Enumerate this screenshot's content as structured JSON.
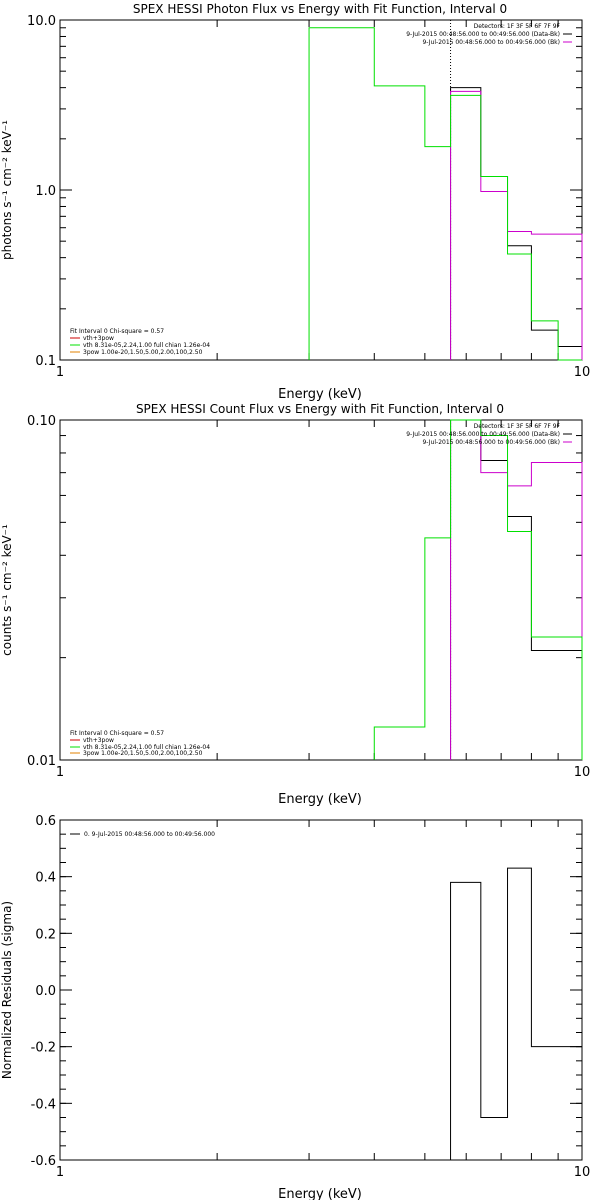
{
  "colors": {
    "black": "#000000",
    "green": "#00e000",
    "magenta": "#cc00cc",
    "red": "#cc0000",
    "orange": "#e08000"
  },
  "chart_data": [
    {
      "type": "line",
      "step": true,
      "title": "SPEX HESSI Photon Flux vs Energy with Fit Function, Interval 0",
      "xlabel": "Energy (keV)",
      "ylabel": "photons s⁻¹ cm⁻² keV⁻¹",
      "xscale": "log",
      "yscale": "log",
      "xlim": [
        1,
        10
      ],
      "ylim": [
        0.1,
        10
      ],
      "x_ticks": [
        "1",
        "10"
      ],
      "y_ticks": [
        "0.1",
        "1.0",
        "10.0"
      ],
      "vline_x": 5.6,
      "legend_topright": [
        "Detectors: 1F 3F 5F 6F 7F 9F",
        "9-Jul-2015 00:48:56.000 to 00:49:56.000 (Data-Bk)",
        "9-Jul-2015 00:48:56.000 to 00:49:56.000 (Bk)"
      ],
      "legend_bottomleft": [
        "Fit Interval 0   Chi-square = 0.57",
        "vth+3pow",
        "vth 8.31e-05,2.24,1.00  full chian 1.26e-04",
        "3pow 1.00e-20,1.50,5.00,2.00,100,2.50"
      ],
      "series": [
        {
          "name": "Data-Bk",
          "color": "black",
          "edges": [
            5.6,
            6.4,
            7.2,
            8.0,
            9.0,
            10.0
          ],
          "values": [
            4.0,
            1.2,
            0.47,
            0.15,
            0.12
          ]
        },
        {
          "name": "Bk",
          "color": "magenta",
          "edges": [
            5.6,
            6.4,
            7.2,
            8.0,
            9.0,
            10.0
          ],
          "values": [
            3.8,
            0.98,
            0.57,
            0.55,
            0.55
          ]
        },
        {
          "name": "vth+3pow",
          "color": "green",
          "edges": [
            3.0,
            4.0,
            5.0,
            5.6,
            6.4,
            7.2,
            8.0,
            9.0,
            10.0
          ],
          "values": [
            9.0,
            4.1,
            1.8,
            3.6,
            1.2,
            0.42,
            0.17,
            0.1
          ]
        }
      ]
    },
    {
      "type": "line",
      "step": true,
      "title": "SPEX HESSI Count Flux vs Energy with Fit Function, Interval 0",
      "xlabel": "Energy (keV)",
      "ylabel": "counts s⁻¹ cm⁻² keV⁻¹",
      "xscale": "log",
      "yscale": "log",
      "xlim": [
        1,
        10
      ],
      "ylim": [
        0.01,
        0.1
      ],
      "x_ticks": [
        "1",
        "10"
      ],
      "y_ticks": [
        "0.01",
        "0.10"
      ],
      "vline_x": 5.6,
      "legend_topright": [
        "Detectors: 1F 3F 5F 6F 7F 9F",
        "9-Jul-2015 00:48:56.000 to 00:49:56.000 (Data-Bk)",
        "9-Jul-2015 00:48:56.000 to 00:49:56.000 (Bk)"
      ],
      "legend_bottomleft": [
        "Fit Interval 0   Chi-square = 0.57",
        "vth+3pow",
        "vth 8.31e-05,2.24,1.00  full chian 1.26e-04",
        "3pow 1.00e-20,1.50,5.00,2.00,100,2.50"
      ],
      "series": [
        {
          "name": "Data-Bk",
          "color": "black",
          "edges": [
            5.6,
            6.4,
            7.2,
            8.0,
            9.0,
            10.0
          ],
          "values": [
            0.1,
            0.076,
            0.052,
            0.021,
            0.021
          ]
        },
        {
          "name": "Bk",
          "color": "magenta",
          "edges": [
            5.6,
            6.4,
            7.2,
            8.0,
            9.0,
            10.0
          ],
          "values": [
            0.1,
            0.07,
            0.064,
            0.075,
            0.075
          ]
        },
        {
          "name": "vth+3pow",
          "color": "green",
          "edges": [
            4.0,
            5.0,
            5.6,
            6.4,
            7.2,
            8.0,
            9.0,
            10.0
          ],
          "values": [
            0.0125,
            0.045,
            0.1,
            0.09,
            0.047,
            0.023,
            0.023
          ]
        }
      ]
    },
    {
      "type": "line",
      "step": true,
      "title": "",
      "xlabel": "Energy (keV)",
      "ylabel": "Normalized Residuals (sigma)",
      "xscale": "log",
      "yscale": "linear",
      "xlim": [
        1,
        10
      ],
      "ylim": [
        -0.6,
        0.6
      ],
      "x_ticks": [
        "1",
        "10"
      ],
      "y_ticks": [
        "-0.6",
        "-0.4",
        "-0.2",
        "0.0",
        "0.2",
        "0.4",
        "0.6"
      ],
      "legend": [
        "0.  9-Jul-2015 00:48:56.000 to 00:49:56.000"
      ],
      "series": [
        {
          "name": "0.",
          "color": "black",
          "edges": [
            5.6,
            6.4,
            7.2,
            8.0,
            9.0,
            10.0
          ],
          "values": [
            0.38,
            -0.45,
            0.43,
            -0.2,
            -0.2
          ]
        }
      ]
    }
  ]
}
